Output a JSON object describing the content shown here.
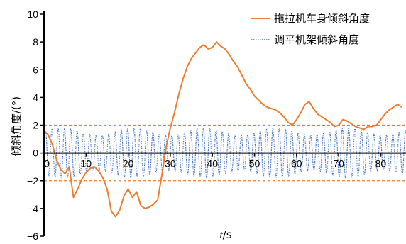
{
  "chart_data": {
    "type": "line",
    "xlabel_var": "t",
    "xlabel_unit": "/s",
    "ylabel": "倾斜角度/(°)",
    "xlim": [
      0,
      86
    ],
    "ylim": [
      -6,
      10
    ],
    "xticks": [
      "0",
      "10",
      "20",
      "30",
      "40",
      "50",
      "60",
      "70",
      "80"
    ],
    "yticks": [
      "−6",
      "−4",
      "−2",
      "0",
      "2",
      "4",
      "6",
      "8",
      "10"
    ],
    "legend_position": "top-right",
    "reference_lines": [
      2,
      -2
    ],
    "series": [
      {
        "name": "拖拉机车身倾斜角度",
        "color": "#ed7d31",
        "style": "solid",
        "points": [
          [
            0,
            1.6
          ],
          [
            1,
            1.3
          ],
          [
            2,
            0.6
          ],
          [
            3,
            -0.5
          ],
          [
            4,
            -1.2
          ],
          [
            5,
            -1.5
          ],
          [
            6,
            -1.0
          ],
          [
            7,
            -3.2
          ],
          [
            8,
            -2.6
          ],
          [
            9,
            -1.9
          ],
          [
            10,
            -1.4
          ],
          [
            11,
            -1.1
          ],
          [
            12,
            -1.0
          ],
          [
            13,
            -1.3
          ],
          [
            14,
            -1.8
          ],
          [
            15,
            -2.6
          ],
          [
            16,
            -4.2
          ],
          [
            17,
            -4.6
          ],
          [
            18,
            -4.1
          ],
          [
            19,
            -3.1
          ],
          [
            20,
            -2.6
          ],
          [
            21,
            -3.2
          ],
          [
            22,
            -2.8
          ],
          [
            23,
            -3.8
          ],
          [
            24,
            -4.0
          ],
          [
            25,
            -3.9
          ],
          [
            26,
            -3.7
          ],
          [
            27,
            -3.4
          ],
          [
            28,
            -1.6
          ],
          [
            29,
            0.4
          ],
          [
            30,
            1.8
          ],
          [
            31,
            2.9
          ],
          [
            32,
            4.2
          ],
          [
            33,
            5.3
          ],
          [
            34,
            6.2
          ],
          [
            35,
            6.8
          ],
          [
            36,
            7.2
          ],
          [
            37,
            7.6
          ],
          [
            38,
            7.8
          ],
          [
            39,
            7.5
          ],
          [
            40,
            7.6
          ],
          [
            41,
            8.0
          ],
          [
            42,
            7.7
          ],
          [
            43,
            7.5
          ],
          [
            44,
            7.1
          ],
          [
            45,
            6.6
          ],
          [
            46,
            6.2
          ],
          [
            47,
            5.6
          ],
          [
            48,
            5.0
          ],
          [
            49,
            4.6
          ],
          [
            50,
            4.1
          ],
          [
            51,
            3.8
          ],
          [
            52,
            3.5
          ],
          [
            53,
            3.3
          ],
          [
            54,
            3.2
          ],
          [
            55,
            3.1
          ],
          [
            56,
            2.9
          ],
          [
            57,
            2.6
          ],
          [
            58,
            2.2
          ],
          [
            59,
            2.0
          ],
          [
            60,
            2.4
          ],
          [
            61,
            2.9
          ],
          [
            62,
            3.5
          ],
          [
            63,
            3.7
          ],
          [
            64,
            3.2
          ],
          [
            65,
            2.8
          ],
          [
            66,
            2.6
          ],
          [
            67,
            2.4
          ],
          [
            68,
            2.2
          ],
          [
            69,
            1.9
          ],
          [
            70,
            2.0
          ],
          [
            71,
            2.4
          ],
          [
            72,
            2.3
          ],
          [
            73,
            2.1
          ],
          [
            74,
            1.9
          ],
          [
            75,
            1.8
          ],
          [
            76,
            1.7
          ],
          [
            77,
            1.9
          ],
          [
            78,
            1.9
          ],
          [
            79,
            2.0
          ],
          [
            80,
            2.4
          ],
          [
            81,
            2.8
          ],
          [
            82,
            3.1
          ],
          [
            83,
            3.3
          ],
          [
            84,
            3.5
          ],
          [
            85,
            3.3
          ]
        ]
      },
      {
        "name": "调平机架倾斜角度",
        "color": "#4472c4",
        "style": "dotted",
        "amplitude": 1.8,
        "period_s": 1.5
      }
    ]
  }
}
